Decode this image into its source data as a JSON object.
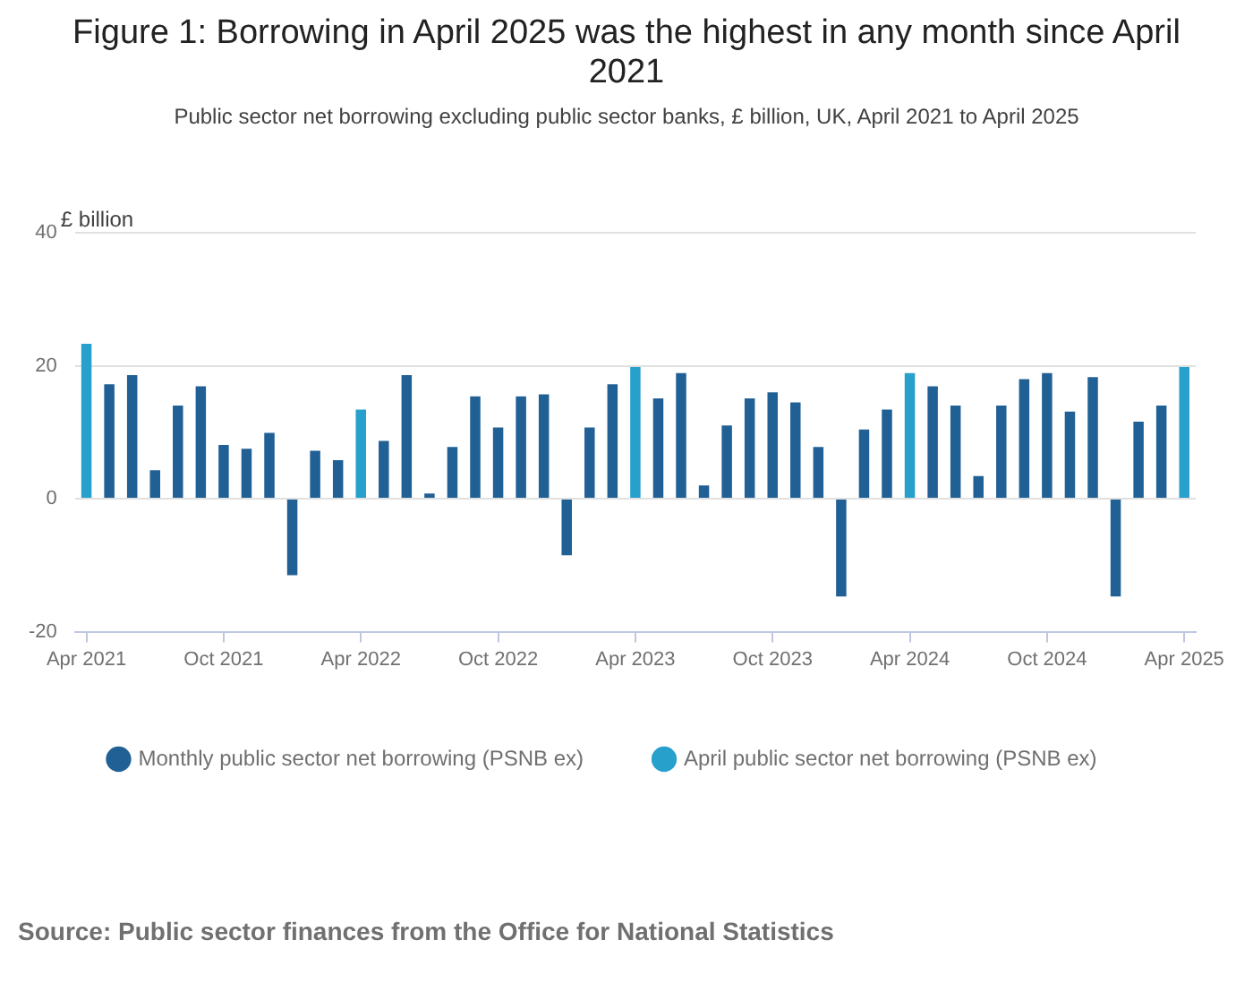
{
  "chart_data": {
    "type": "bar",
    "title": "Figure 1: Borrowing in April 2025 was the highest in any month since April 2021",
    "subtitle": "Public sector net borrowing excluding public sector banks, £ billion, UK, April 2021 to April 2025",
    "ylabel": "£ billion",
    "annotations": [
      "Source: Public sector finances from the Office for National Statistics"
    ],
    "categories": [
      "Apr 2021",
      null,
      null,
      null,
      null,
      null,
      "Oct 2021",
      null,
      null,
      null,
      null,
      null,
      "Apr 2022",
      null,
      null,
      null,
      null,
      null,
      "Oct 2022",
      null,
      null,
      null,
      null,
      null,
      "Apr 2023",
      null,
      null,
      null,
      null,
      null,
      "Oct 2023",
      null,
      null,
      null,
      null,
      null,
      "Apr 2024",
      null,
      null,
      null,
      null,
      null,
      "Oct 2024",
      null,
      null,
      null,
      null,
      null,
      "Apr 2025"
    ],
    "series": [
      {
        "name": "Monthly public sector net borrowing (PSNB ex)",
        "color": "#206095",
        "values": [
          null,
          17.2,
          18.6,
          4.3,
          14.0,
          16.9,
          8.1,
          7.5,
          9.9,
          -11.5,
          7.2,
          5.8,
          null,
          8.7,
          18.6,
          0.8,
          7.8,
          15.4,
          10.7,
          15.4,
          15.7,
          -8.5,
          10.7,
          17.2,
          null,
          15.1,
          18.9,
          2.0,
          11.0,
          15.1,
          16.0,
          14.5,
          7.8,
          -14.7,
          10.4,
          13.4,
          null,
          16.9,
          14.0,
          3.4,
          14.0,
          18.0,
          18.9,
          13.1,
          18.3,
          -14.7,
          11.6,
          14.0,
          null
        ]
      },
      {
        "name": "April public sector net borrowing (PSNB ex)",
        "color": "#27a0cc",
        "values": [
          23.3,
          null,
          null,
          null,
          null,
          null,
          null,
          null,
          null,
          null,
          null,
          null,
          13.4,
          null,
          null,
          null,
          null,
          null,
          null,
          null,
          null,
          null,
          null,
          null,
          19.8,
          null,
          null,
          null,
          null,
          null,
          null,
          null,
          null,
          null,
          null,
          null,
          18.9,
          null,
          null,
          null,
          null,
          null,
          null,
          null,
          null,
          null,
          null,
          null,
          19.8
        ]
      }
    ],
    "ylim": [
      -20,
      40
    ],
    "yticks": [
      -20,
      0,
      20,
      40
    ],
    "grid": "y",
    "legend": "bottom"
  }
}
